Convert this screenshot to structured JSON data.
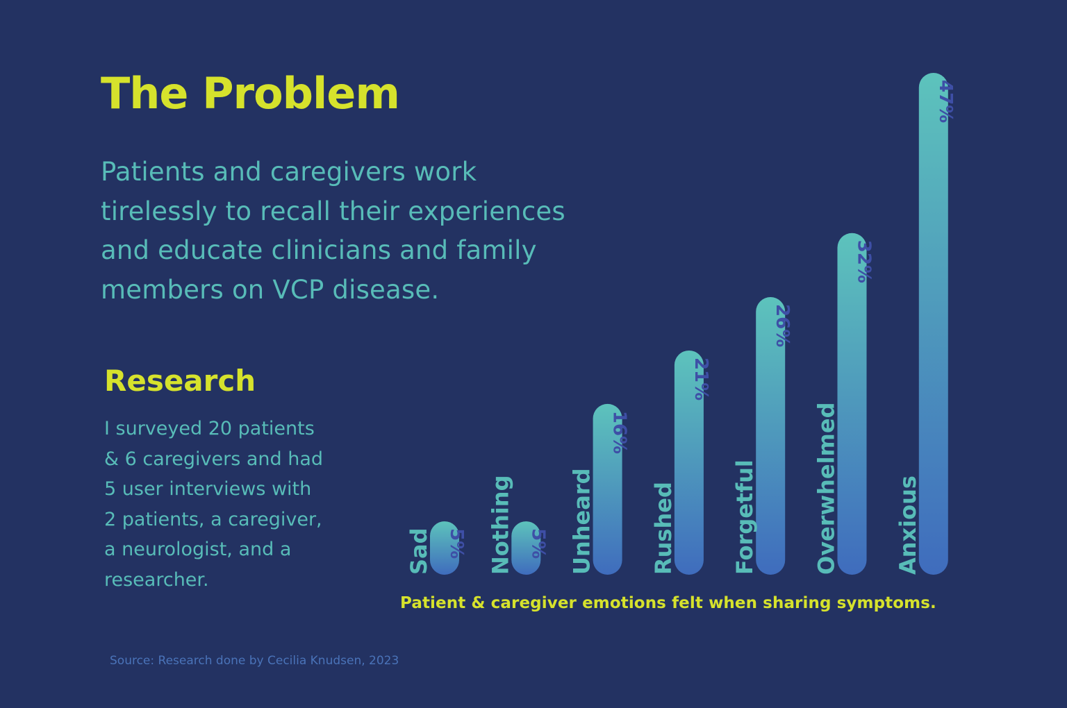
{
  "title": "The Problem",
  "intro_lines": [
    "Patients and caregivers work",
    "tirelessly to recall their experiences",
    "and educate clinicians and family",
    "members on VCP disease."
  ],
  "research": {
    "heading": "Research",
    "lines": [
      "I surveyed 20 patients",
      "& 6 caregivers and had",
      "5 user interviews with",
      "2 patients, a caregiver,",
      "a neurologist, and a",
      "researcher."
    ]
  },
  "source": "Source: Research done by Cecilia Knudsen, 2023",
  "colors": {
    "background": "#233262",
    "accent": "#d6e22c",
    "teal": "#58bcb8",
    "bar_bottom": "#3f6cbd",
    "value_text": "#3e4fa6"
  },
  "chart_data": {
    "type": "bar",
    "orientation": "vertical",
    "title": "Patient & caregiver emotions felt when sharing symptoms.",
    "categories": [
      "Sad",
      "Nothing",
      "Unheard",
      "Rushed",
      "Forgetful",
      "Overwhelmed",
      "Anxious"
    ],
    "values": [
      5,
      5,
      16,
      21,
      26,
      32,
      47
    ],
    "value_labels": [
      "5%",
      "5%",
      "16%",
      "21%",
      "26%",
      "32%",
      "47%"
    ],
    "unit": "%",
    "ylim": [
      0,
      47
    ],
    "grid": false,
    "legend": "none",
    "bar_style": "rounded pill, vertical gradient teal to blue",
    "labels_rotated": true
  }
}
